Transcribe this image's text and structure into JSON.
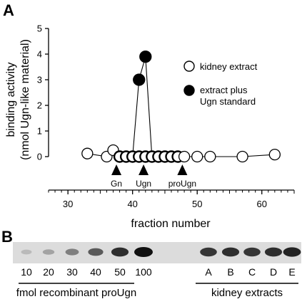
{
  "panel_a_label": "A",
  "panel_b_label": "B",
  "chart_data": {
    "type": "scatter",
    "xlabel": "fraction number",
    "ylabel_line1": "binding activity",
    "ylabel_line2": "(nmol Ugn-like material)",
    "xlim": [
      27,
      65
    ],
    "ylim": [
      0,
      5
    ],
    "x_ticks": [
      30,
      40,
      50,
      60
    ],
    "y_ticks": [
      0,
      1,
      2,
      3,
      4,
      5
    ],
    "legend_placement": "right",
    "series": [
      {
        "name": "kidney extract",
        "marker": "open-circle",
        "x": [
          33,
          36,
          37,
          38,
          39,
          40,
          41,
          42,
          43,
          44,
          45,
          46,
          47,
          48,
          50,
          52,
          57,
          62
        ],
        "y": [
          0.12,
          0.0,
          0.25,
          0.0,
          0.0,
          0.0,
          0.0,
          0.0,
          0.0,
          0.0,
          0.0,
          0.0,
          0.0,
          0.0,
          0.0,
          0.0,
          0.0,
          0.08
        ]
      },
      {
        "name": "extract plus Ugn standard",
        "legend_line1": "extract plus",
        "legend_line2": "Ugn standard",
        "marker": "filled-circle",
        "x": [
          41,
          42
        ],
        "y": [
          3.0,
          3.9
        ]
      }
    ],
    "connected_line": [
      [
        33,
        0.12
      ],
      [
        36,
        0.0
      ],
      [
        37,
        0.25
      ],
      [
        38,
        0.0
      ],
      [
        40,
        0.0
      ],
      [
        41,
        3.0
      ],
      [
        42,
        3.9
      ],
      [
        43,
        0.0
      ],
      [
        48,
        0.0
      ],
      [
        52,
        0.0
      ],
      [
        57,
        0.0
      ],
      [
        62,
        0.08
      ]
    ],
    "markers": [
      {
        "label": "Gn",
        "x": 37.5
      },
      {
        "label": "Ugn",
        "x": 41.7
      },
      {
        "label": "proUgn",
        "x": 47.7
      }
    ]
  },
  "blot": {
    "standard_lanes": [
      "10",
      "20",
      "30",
      "40",
      "50",
      "100"
    ],
    "standard_intensity": [
      0.08,
      0.2,
      0.4,
      0.6,
      0.85,
      1.0
    ],
    "standard_group_label": "fmol recombinant proUgn",
    "sample_lanes": [
      "A",
      "B",
      "C",
      "D",
      "E"
    ],
    "sample_intensity": [
      0.8,
      0.85,
      0.8,
      0.85,
      0.9
    ],
    "sample_group_label": "kidney extracts",
    "background_color": "#dcdcdc",
    "band_color": "#111111"
  }
}
